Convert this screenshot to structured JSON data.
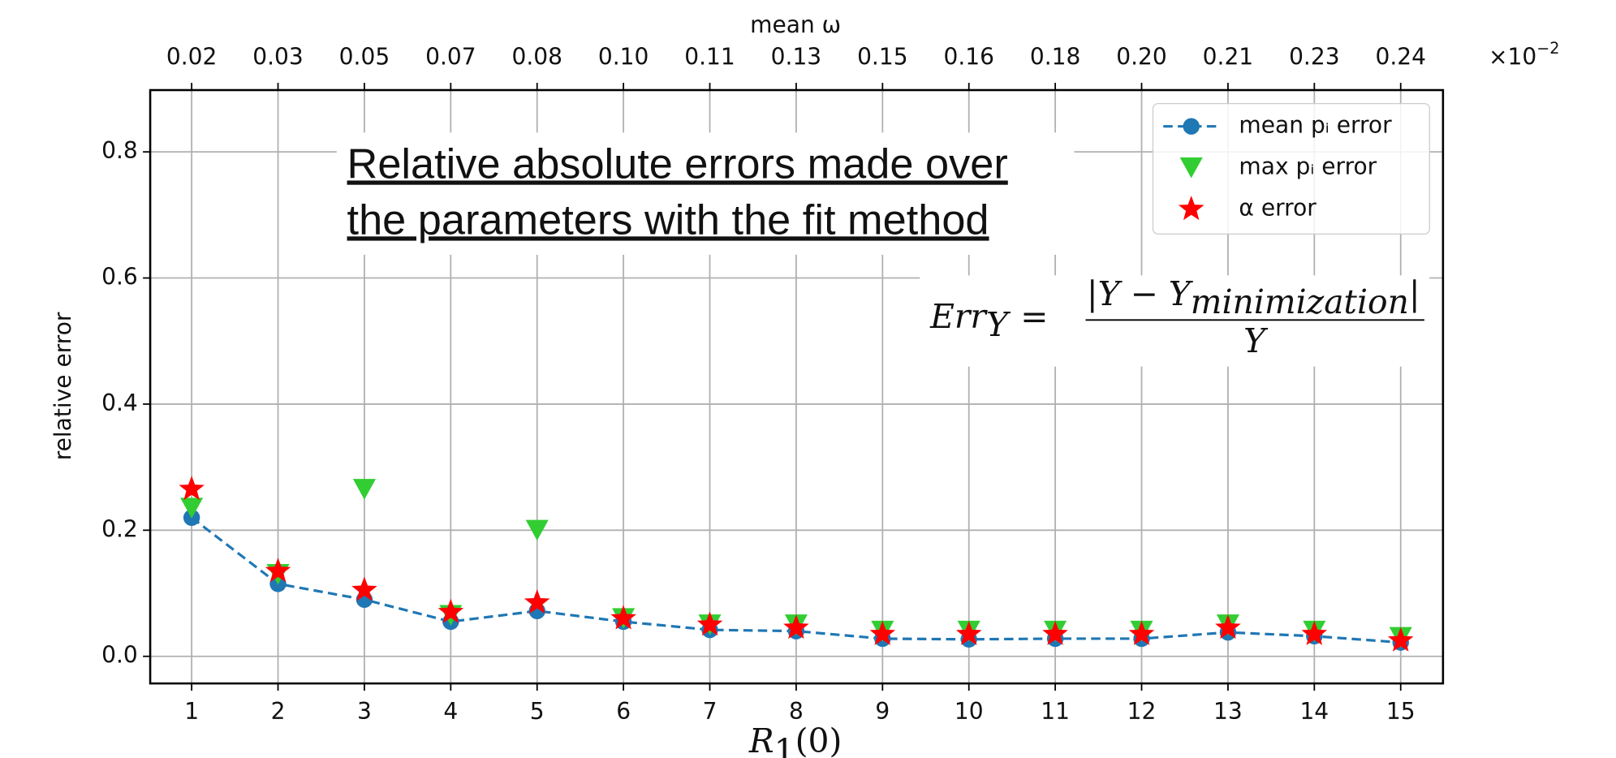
{
  "chart_data": {
    "type": "line",
    "top_axis_label": "mean ω",
    "top_labels": [
      "0.02",
      "0.03",
      "0.05",
      "0.07",
      "0.08",
      "0.10",
      "0.11",
      "0.13",
      "0.15",
      "0.16",
      "0.18",
      "0.20",
      "0.21",
      "0.23",
      "0.24"
    ],
    "top_multiplier": "×10",
    "top_multiplier_exp": "−2",
    "y_label": "relative error",
    "x_label": "R",
    "x_label_sub": "1",
    "x_label_tail": "(0)",
    "x": [
      1,
      2,
      3,
      4,
      5,
      6,
      7,
      8,
      9,
      10,
      11,
      12,
      13,
      14,
      15
    ],
    "xlim": [
      0.52,
      15.49
    ],
    "xticks": [
      1,
      2,
      3,
      4,
      5,
      6,
      7,
      8,
      9,
      10,
      11,
      12,
      13,
      14,
      15
    ],
    "ylim": [
      -0.043,
      0.898
    ],
    "yticks": [
      {
        "value": 0,
        "label": "0.0"
      },
      {
        "value": 0.2,
        "label": "0.2"
      },
      {
        "value": 0.4,
        "label": "0.4"
      },
      {
        "value": 0.6,
        "label": "0.6"
      },
      {
        "value": 0.8,
        "label": "0.8"
      }
    ],
    "grid": true,
    "legend": "upper right",
    "annotation": [
      "Relative absolute errors made over",
      "the parameters with the fit method"
    ],
    "formula": {
      "lhs": "Err",
      "lhs_sub": "Y",
      "equals": "=",
      "numerator": "|Y − Y",
      "numerator_sub": "minimization",
      "numerator_end": "|",
      "denominator": "Y"
    },
    "series": [
      {
        "name": "mean pᵢ error",
        "color": "#1f77b4",
        "marker": "circle",
        "line": "dashed",
        "values": [
          0.22,
          0.115,
          0.09,
          0.055,
          0.072,
          0.055,
          0.042,
          0.04,
          0.028,
          0.027,
          0.028,
          0.028,
          0.038,
          0.032,
          0.022
        ]
      },
      {
        "name": "max pᵢ error",
        "color": "#32cd32",
        "marker": "triangle",
        "line": "none",
        "values": [
          0.235,
          0.13,
          0.265,
          0.065,
          0.2,
          0.06,
          0.05,
          0.05,
          0.04,
          0.04,
          0.04,
          0.04,
          0.05,
          0.04,
          0.03
        ]
      },
      {
        "name": "α error",
        "color": "#ff0000",
        "marker": "star",
        "line": "none",
        "values": [
          0.265,
          0.135,
          0.105,
          0.07,
          0.085,
          0.06,
          0.05,
          0.045,
          0.035,
          0.035,
          0.035,
          0.035,
          0.045,
          0.035,
          0.025
        ]
      }
    ]
  }
}
